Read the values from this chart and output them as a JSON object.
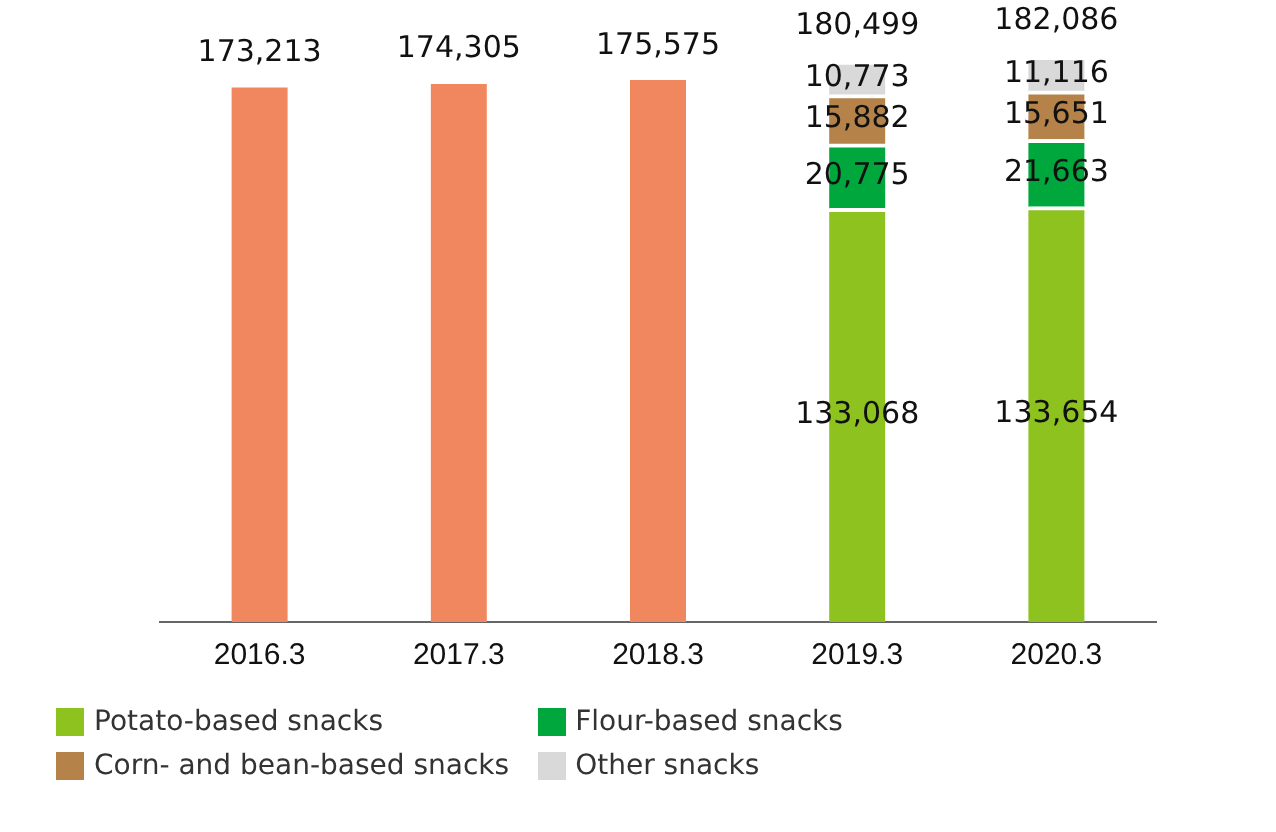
{
  "chart_data": {
    "type": "bar",
    "stacked": true,
    "categories": [
      "2016.3",
      "2017.3",
      "2018.3",
      "2019.3",
      "2020.3"
    ],
    "series": [
      {
        "color": "#f0875f",
        "values": [
          173213,
          174305,
          175575,
          null,
          null
        ],
        "value_labels": [
          "173,213",
          "174,305",
          "175,575",
          null,
          null
        ]
      },
      {
        "name": "Potato-based snacks",
        "color": "#8dc21f",
        "values": [
          null,
          null,
          null,
          133068,
          133654
        ],
        "value_labels": [
          null,
          null,
          null,
          "133,068",
          "133,654"
        ]
      },
      {
        "name": "Flour-based snacks",
        "color": "#00a73c",
        "values": [
          null,
          null,
          null,
          20775,
          21663
        ],
        "value_labels": [
          null,
          null,
          null,
          "20,775",
          "21,663"
        ]
      },
      {
        "name": "Corn- and bean-based snacks",
        "color": "#b5834a",
        "values": [
          null,
          null,
          null,
          15882,
          15651
        ],
        "value_labels": [
          null,
          null,
          null,
          "15,882",
          "15,651"
        ]
      },
      {
        "name": "Other snacks",
        "color": "#d9d9d9",
        "values": [
          null,
          null,
          null,
          10773,
          11116
        ],
        "value_labels": [
          null,
          null,
          null,
          "10,773",
          "11,116"
        ]
      }
    ],
    "totals": [
      null,
      null,
      null,
      "180,499",
      "182,086"
    ],
    "grid": false,
    "legend": "bottom"
  }
}
